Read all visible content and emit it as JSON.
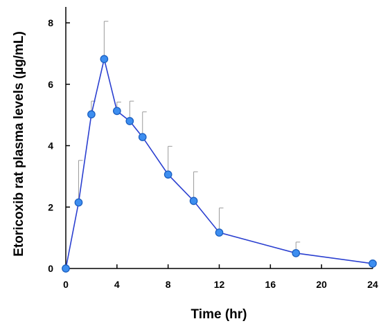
{
  "chart_data": {
    "type": "line",
    "title": "",
    "xlabel": "Time (hr)",
    "ylabel": "Etoricoxib rat plasma levels (µg/mL)",
    "xlim": [
      0,
      24
    ],
    "ylim": [
      0,
      8
    ],
    "xticks": [
      0,
      4,
      8,
      12,
      16,
      20,
      24
    ],
    "yticks": [
      0,
      2,
      4,
      6,
      8
    ],
    "grid": false,
    "legend": "none",
    "colors": {
      "line": "#2a3fd0",
      "marker_fill": "#3d8ef0",
      "marker_edge": "#1b5fc0",
      "error_bar": "#9a9a9a",
      "axis": "#000000"
    },
    "series": [
      {
        "x": [
          0,
          1,
          2,
          3,
          4,
          5,
          6,
          8,
          10,
          12,
          18,
          24
        ],
        "y": [
          0,
          2.15,
          5.02,
          6.82,
          5.13,
          4.8,
          4.28,
          3.06,
          2.2,
          1.17,
          0.5,
          0.16
        ],
        "error_upper": [
          0,
          3.52,
          5.45,
          8.05,
          5.42,
          5.45,
          5.1,
          3.98,
          3.15,
          1.97,
          0.86,
          0.2
        ]
      }
    ]
  }
}
